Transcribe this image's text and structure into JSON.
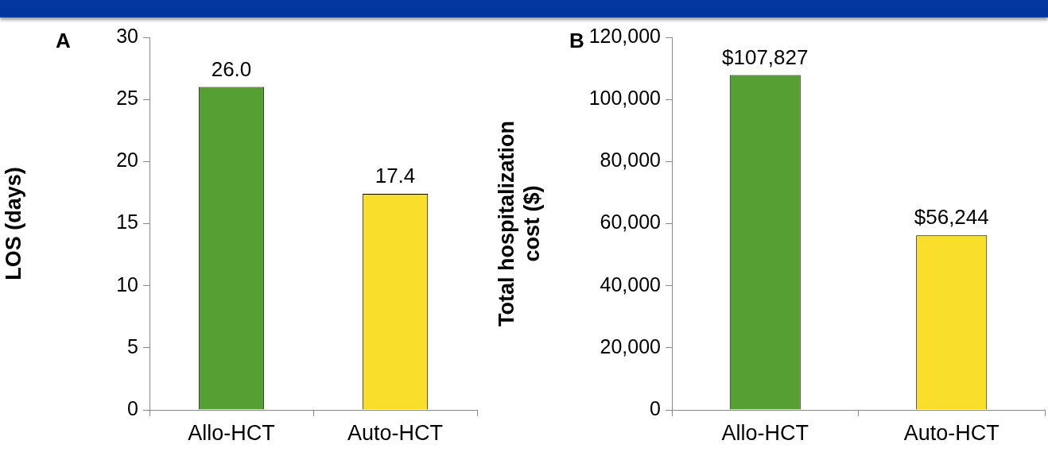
{
  "chart_data": [
    {
      "type": "bar",
      "ylabel": "LOS (days)",
      "annotations": [
        "A"
      ],
      "categories": [
        "Allo-HCT",
        "Auto-HCT"
      ],
      "values": [
        26.0,
        17.4
      ],
      "colors": [
        "#56a033",
        "#f9df2c"
      ],
      "value_labels": [
        "26.0",
        "17.4"
      ],
      "ylim": [
        0,
        30
      ],
      "yticks": [
        0,
        5,
        10,
        15,
        20,
        25,
        30
      ]
    },
    {
      "type": "bar",
      "ylabel": "Total hospitalization cost ($)",
      "annotations": [
        "B"
      ],
      "categories": [
        "Allo-HCT",
        "Auto-HCT"
      ],
      "values": [
        107827,
        56244
      ],
      "colors": [
        "#56a033",
        "#f9df2c"
      ],
      "value_labels": [
        "$107,827",
        "$56,244"
      ],
      "ylim": [
        0,
        120000
      ],
      "yticks": [
        {
          "value": 0,
          "label": "0"
        },
        {
          "value": 20000,
          "label": "20,000"
        },
        {
          "value": 40000,
          "label": "40,000"
        },
        {
          "value": 60000,
          "label": "60,000"
        },
        {
          "value": 80000,
          "label": "80,000"
        },
        {
          "value": 100000,
          "label": "100,000"
        },
        {
          "value": 120000,
          "label": "120,000"
        }
      ]
    }
  ]
}
